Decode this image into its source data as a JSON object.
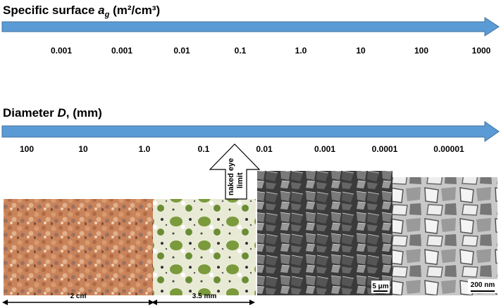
{
  "surface_axis": {
    "title_parts": [
      "Specific surface",
      "a",
      "g",
      "(m²/cm³)"
    ],
    "ticks": [
      "0.001",
      "0.001",
      "0.01",
      "0.1",
      "1.0",
      "10",
      "100",
      "1000"
    ]
  },
  "diameter_axis": {
    "title_parts": [
      "Diameter",
      "D",
      ", (mm)"
    ],
    "ticks": [
      "100",
      "10",
      "1.0",
      "0.1",
      "0.01",
      "0.001",
      "0.0001",
      "0.00001"
    ]
  },
  "marker": {
    "lines": [
      "naked eye",
      "limit"
    ]
  },
  "images": [
    {
      "scale_label": "2 cm"
    },
    {
      "scale_label": "3.5 mm"
    },
    {
      "scale_label": "5 μm"
    },
    {
      "scale_label": "200 nm"
    }
  ]
}
